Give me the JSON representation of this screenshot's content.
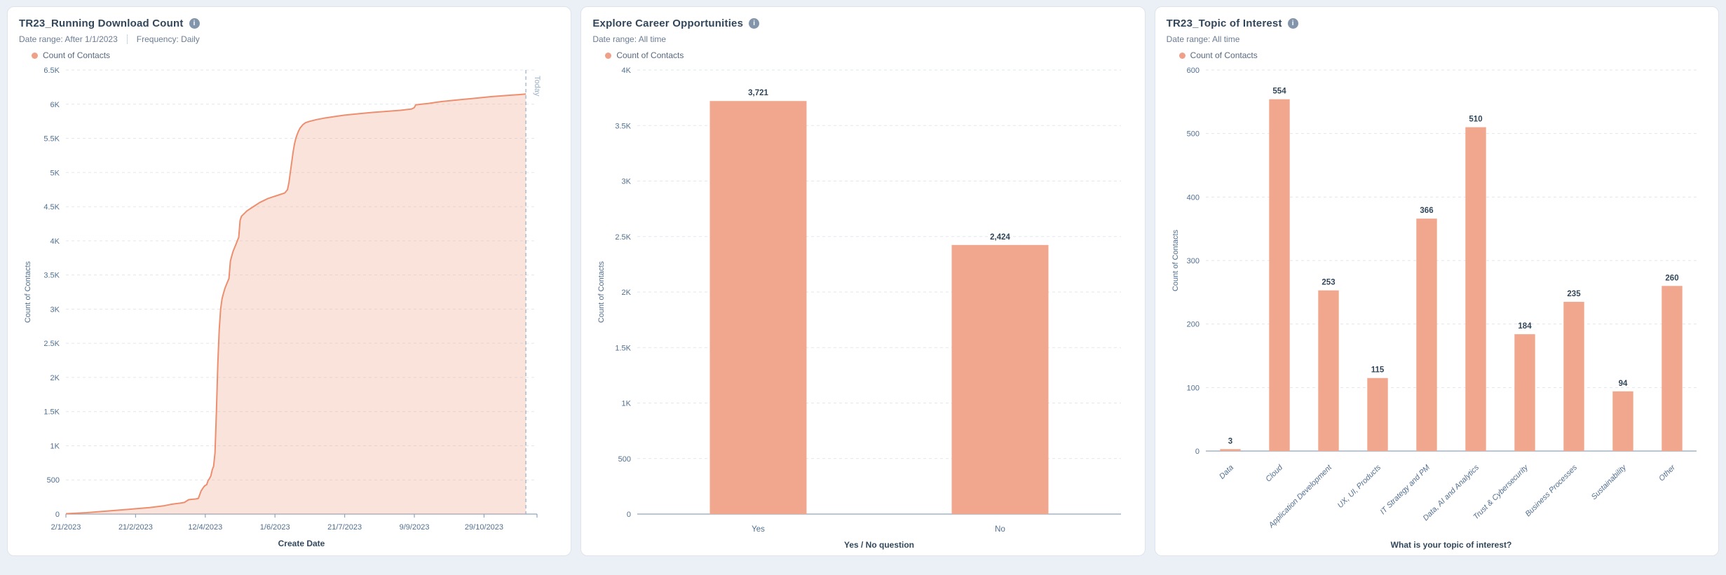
{
  "colors": {
    "bar": "#f0a78e",
    "line": "#ed8e6f",
    "area_fill": "rgba(240,167,142,0.32)",
    "grid": "#e2e7ee",
    "axis": "#8ea4bd",
    "tick_text": "#516f90",
    "value_text": "#33475b",
    "today_line": "#99aec5",
    "legend_dot": "#efa088",
    "panel_bg": "#ffffff",
    "page_bg": "#ebf0f6"
  },
  "icons": {
    "info": "i"
  },
  "panels": [
    {
      "title": "TR23_Running Download Count",
      "meta": [
        "Date range: After 1/1/2023",
        "Frequency: Daily"
      ],
      "legend": "Count of Contacts",
      "chart_data": {
        "type": "area",
        "title": "TR23_Running Download Count",
        "xlabel": "Create Date",
        "ylabel": "Count of Contacts",
        "ylim": [
          0,
          6500
        ],
        "grid": true,
        "legend_position": "top-left",
        "y_ticks": [
          {
            "v": 0,
            "label": "0"
          },
          {
            "v": 500,
            "label": "500"
          },
          {
            "v": 1000,
            "label": "1K"
          },
          {
            "v": 1500,
            "label": "1.5K"
          },
          {
            "v": 2000,
            "label": "2K"
          },
          {
            "v": 2500,
            "label": "2.5K"
          },
          {
            "v": 3000,
            "label": "3K"
          },
          {
            "v": 3500,
            "label": "3.5K"
          },
          {
            "v": 4000,
            "label": "4K"
          },
          {
            "v": 4500,
            "label": "4.5K"
          },
          {
            "v": 5000,
            "label": "5K"
          },
          {
            "v": 5500,
            "label": "5.5K"
          },
          {
            "v": 6000,
            "label": "6K"
          },
          {
            "v": 6500,
            "label": "6.5K"
          }
        ],
        "x_domain": [
          0,
          338
        ],
        "x_ticks": [
          {
            "day": 0,
            "label": "2/1/2023"
          },
          {
            "day": 50,
            "label": "21/2/2023"
          },
          {
            "day": 100,
            "label": "12/4/2023"
          },
          {
            "day": 150,
            "label": "1/6/2023"
          },
          {
            "day": 200,
            "label": "21/7/2023"
          },
          {
            "day": 250,
            "label": "9/9/2023"
          },
          {
            "day": 300,
            "label": "29/10/2023"
          }
        ],
        "today": {
          "day": 330,
          "label": "Today"
        },
        "series": [
          {
            "name": "Count of Contacts",
            "points": [
              [
                0,
                5
              ],
              [
                15,
                20
              ],
              [
                30,
                45
              ],
              [
                45,
                70
              ],
              [
                50,
                78
              ],
              [
                60,
                95
              ],
              [
                68,
                115
              ],
              [
                70,
                120
              ],
              [
                75,
                140
              ],
              [
                78,
                150
              ],
              [
                82,
                160
              ],
              [
                85,
                170
              ],
              [
                88,
                210
              ],
              [
                90,
                215
              ],
              [
                93,
                220
              ],
              [
                95,
                230
              ],
              [
                97,
                340
              ],
              [
                99,
                400
              ],
              [
                100,
                420
              ],
              [
                101,
                430
              ],
              [
                102,
                490
              ],
              [
                103,
                520
              ],
              [
                104,
                560
              ],
              [
                105,
                650
              ],
              [
                106,
                700
              ],
              [
                107,
                900
              ],
              [
                108,
                1500
              ],
              [
                109,
                2200
              ],
              [
                110,
                2700
              ],
              [
                111,
                3000
              ],
              [
                112,
                3150
              ],
              [
                113,
                3230
              ],
              [
                114,
                3300
              ],
              [
                115,
                3350
              ],
              [
                116,
                3400
              ],
              [
                117,
                3450
              ],
              [
                118,
                3700
              ],
              [
                119,
                3780
              ],
              [
                120,
                3850
              ],
              [
                121,
                3900
              ],
              [
                122,
                3950
              ],
              [
                123,
                4000
              ],
              [
                124,
                4050
              ],
              [
                125,
                4300
              ],
              [
                126,
                4360
              ],
              [
                128,
                4400
              ],
              [
                130,
                4440
              ],
              [
                133,
                4480
              ],
              [
                136,
                4520
              ],
              [
                139,
                4560
              ],
              [
                142,
                4590
              ],
              [
                145,
                4620
              ],
              [
                148,
                4640
              ],
              [
                151,
                4660
              ],
              [
                154,
                4680
              ],
              [
                157,
                4700
              ],
              [
                159,
                4750
              ],
              [
                160,
                4850
              ],
              [
                161,
                5000
              ],
              [
                162,
                5150
              ],
              [
                163,
                5300
              ],
              [
                164,
                5420
              ],
              [
                165,
                5500
              ],
              [
                166,
                5560
              ],
              [
                167,
                5610
              ],
              [
                168,
                5650
              ],
              [
                170,
                5700
              ],
              [
                172,
                5730
              ],
              [
                175,
                5750
              ],
              [
                180,
                5775
              ],
              [
                185,
                5795
              ],
              [
                190,
                5810
              ],
              [
                195,
                5825
              ],
              [
                200,
                5840
              ],
              [
                210,
                5860
              ],
              [
                220,
                5880
              ],
              [
                230,
                5895
              ],
              [
                240,
                5910
              ],
              [
                248,
                5930
              ],
              [
                250,
                5950
              ],
              [
                251,
                5990
              ],
              [
                255,
                6000
              ],
              [
                260,
                6010
              ],
              [
                265,
                6025
              ],
              [
                270,
                6040
              ],
              [
                275,
                6050
              ],
              [
                280,
                6060
              ],
              [
                285,
                6070
              ],
              [
                290,
                6080
              ],
              [
                295,
                6090
              ],
              [
                300,
                6100
              ],
              [
                305,
                6110
              ],
              [
                310,
                6118
              ],
              [
                315,
                6126
              ],
              [
                320,
                6133
              ],
              [
                325,
                6140
              ],
              [
                330,
                6148
              ]
            ]
          }
        ]
      }
    },
    {
      "title": "Explore Career Opportunities",
      "meta": [
        "Date range: All time"
      ],
      "legend": "Count of Contacts",
      "chart_data": {
        "type": "bar",
        "title": "Explore Career Opportunities",
        "xlabel": "Yes / No question",
        "ylabel": "Count of Contacts",
        "ylim": [
          0,
          4000
        ],
        "grid": true,
        "legend_position": "top-left",
        "y_ticks": [
          {
            "v": 0,
            "label": "0"
          },
          {
            "v": 500,
            "label": "500"
          },
          {
            "v": 1000,
            "label": "1K"
          },
          {
            "v": 1500,
            "label": "1.5K"
          },
          {
            "v": 2000,
            "label": "2K"
          },
          {
            "v": 2500,
            "label": "2.5K"
          },
          {
            "v": 3000,
            "label": "3K"
          },
          {
            "v": 3500,
            "label": "3.5K"
          },
          {
            "v": 4000,
            "label": "4K"
          }
        ],
        "categories": [
          "Yes",
          "No"
        ],
        "values": [
          3721,
          2424
        ],
        "value_labels": [
          "3,721",
          "2,424"
        ]
      }
    },
    {
      "title": "TR23_Topic of Interest",
      "meta": [
        "Date range: All time"
      ],
      "legend": "Count of Contacts",
      "chart_data": {
        "type": "bar",
        "title": "TR23_Topic of Interest",
        "xlabel": "What is your topic of interest?",
        "ylabel": "Count of Contacts",
        "ylim": [
          0,
          600
        ],
        "grid": true,
        "legend_position": "top-left",
        "rotated_labels": true,
        "y_ticks": [
          {
            "v": 0,
            "label": "0"
          },
          {
            "v": 100,
            "label": "100"
          },
          {
            "v": 200,
            "label": "200"
          },
          {
            "v": 300,
            "label": "300"
          },
          {
            "v": 400,
            "label": "400"
          },
          {
            "v": 500,
            "label": "500"
          },
          {
            "v": 600,
            "label": "600"
          }
        ],
        "categories": [
          "Data",
          "Cloud",
          "Application Development",
          "UX, UI, Products",
          "IT Strategy and PM",
          "Data, AI and Analytics",
          "Trust & Cybersecurity",
          "Business Processes",
          "Sustainability",
          "Other"
        ],
        "values": [
          3,
          554,
          253,
          115,
          366,
          510,
          184,
          235,
          94,
          260
        ],
        "value_labels": [
          "3",
          "554",
          "253",
          "115",
          "366",
          "510",
          "184",
          "235",
          "94",
          "260"
        ]
      }
    }
  ]
}
